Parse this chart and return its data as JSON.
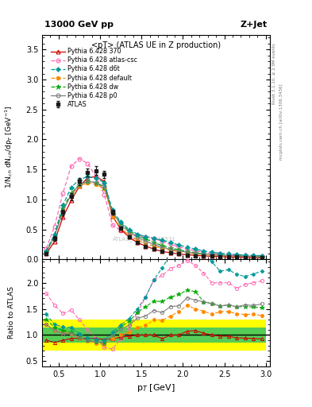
{
  "title_left": "13000 GeV pp",
  "title_right": "Z+Jet",
  "plot_title": "<pT> (ATLAS UE in Z production)",
  "xlabel": "p_T [GeV]",
  "ylabel_main": "1/N_ch dN_ch/dp_T  [GeV]",
  "ylabel_ratio": "Ratio to ATLAS",
  "right_label_top": "Rivet 3.1.10, ≥ 2.9M events",
  "right_label_bottom": "mcplots.cern.ch [arXiv:1306.3436]",
  "watermark": "ATLAS_2014_I1736531",
  "xlim": [
    0.3,
    3.05
  ],
  "ylim_main": [
    0.0,
    3.75
  ],
  "ylim_ratio": [
    0.4,
    2.45
  ],
  "yticks_main": [
    0.0,
    0.5,
    1.0,
    1.5,
    2.0,
    2.5,
    3.0,
    3.5
  ],
  "yticks_ratio": [
    0.5,
    1.0,
    1.5,
    2.0
  ],
  "pT": [
    0.35,
    0.45,
    0.55,
    0.65,
    0.75,
    0.85,
    0.95,
    1.05,
    1.15,
    1.25,
    1.35,
    1.45,
    1.55,
    1.65,
    1.75,
    1.85,
    1.95,
    2.05,
    2.15,
    2.25,
    2.35,
    2.45,
    2.55,
    2.65,
    2.75,
    2.85,
    2.95
  ],
  "atlas_y": [
    0.1,
    0.35,
    0.78,
    1.05,
    1.3,
    1.45,
    1.48,
    1.42,
    0.78,
    0.52,
    0.38,
    0.28,
    0.22,
    0.17,
    0.14,
    0.11,
    0.09,
    0.07,
    0.06,
    0.055,
    0.05,
    0.045,
    0.04,
    0.037,
    0.033,
    0.03,
    0.027
  ],
  "atlas_err": [
    0.02,
    0.04,
    0.05,
    0.06,
    0.06,
    0.07,
    0.07,
    0.06,
    0.04,
    0.03,
    0.02,
    0.015,
    0.012,
    0.01,
    0.009,
    0.008,
    0.007,
    0.006,
    0.005,
    0.005,
    0.004,
    0.004,
    0.004,
    0.003,
    0.003,
    0.003,
    0.002
  ],
  "py370_y": [
    0.09,
    0.3,
    0.7,
    0.98,
    1.22,
    1.36,
    1.38,
    1.3,
    0.72,
    0.5,
    0.37,
    0.28,
    0.22,
    0.17,
    0.13,
    0.11,
    0.09,
    0.075,
    0.065,
    0.057,
    0.05,
    0.044,
    0.039,
    0.035,
    0.031,
    0.028,
    0.025
  ],
  "py_atl_y": [
    0.18,
    0.55,
    1.1,
    1.55,
    1.68,
    1.6,
    1.38,
    1.08,
    0.57,
    0.48,
    0.43,
    0.4,
    0.38,
    0.35,
    0.3,
    0.25,
    0.21,
    0.17,
    0.14,
    0.12,
    0.1,
    0.09,
    0.08,
    0.07,
    0.065,
    0.06,
    0.055
  ],
  "py_d6t_y": [
    0.14,
    0.42,
    0.9,
    1.2,
    1.33,
    1.38,
    1.35,
    1.28,
    0.82,
    0.62,
    0.5,
    0.42,
    0.38,
    0.35,
    0.32,
    0.28,
    0.24,
    0.2,
    0.17,
    0.14,
    0.12,
    0.1,
    0.09,
    0.08,
    0.07,
    0.065,
    0.06
  ],
  "py_def_y": [
    0.12,
    0.38,
    0.82,
    1.08,
    1.22,
    1.28,
    1.25,
    1.18,
    0.72,
    0.52,
    0.4,
    0.32,
    0.26,
    0.22,
    0.18,
    0.15,
    0.13,
    0.11,
    0.09,
    0.08,
    0.07,
    0.065,
    0.058,
    0.052,
    0.046,
    0.042,
    0.037
  ],
  "py_dw_y": [
    0.13,
    0.4,
    0.85,
    1.1,
    1.25,
    1.3,
    1.28,
    1.2,
    0.78,
    0.6,
    0.48,
    0.4,
    0.34,
    0.28,
    0.23,
    0.19,
    0.16,
    0.13,
    0.11,
    0.09,
    0.08,
    0.07,
    0.063,
    0.057,
    0.051,
    0.046,
    0.041
  ],
  "py_p0_y": [
    0.12,
    0.38,
    0.8,
    1.08,
    1.25,
    1.3,
    1.28,
    1.22,
    0.78,
    0.58,
    0.45,
    0.37,
    0.3,
    0.25,
    0.2,
    0.17,
    0.14,
    0.12,
    0.1,
    0.09,
    0.08,
    0.07,
    0.063,
    0.057,
    0.052,
    0.047,
    0.043
  ],
  "colors": {
    "atlas": "#1a1a1a",
    "py370": "#cc0000",
    "py_atl": "#ff69b4",
    "py_d6t": "#009999",
    "py_def": "#ff8800",
    "py_dw": "#00aa00",
    "py_p0": "#808080"
  },
  "band_green_inner": [
    0.85,
    1.15
  ],
  "band_yellow_outer": [
    0.7,
    1.3
  ],
  "figsize": [
    3.93,
    5.12
  ],
  "dpi": 100
}
